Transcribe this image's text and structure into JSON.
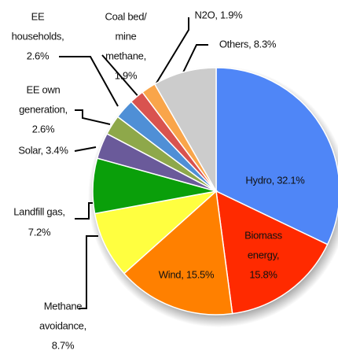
{
  "chart_data": {
    "type": "pie",
    "values": [
      32.1,
      15.8,
      15.5,
      8.7,
      7.2,
      3.4,
      2.6,
      2.6,
      1.9,
      1.9,
      8.3
    ],
    "value_labels": [
      [
        "Hydro, 32.1%"
      ],
      [
        "Biomass",
        "energy,",
        "15.8%"
      ],
      [
        "Wind, 15.5%"
      ],
      [
        "Methane",
        "avoidance,",
        "8.7%"
      ],
      [
        "Landfill gas,",
        "7.2%"
      ],
      [
        "Solar, 3.4%"
      ],
      [
        "EE own",
        "generation,",
        "2.6%"
      ],
      [
        "EE",
        "households,",
        "2.6%"
      ],
      [
        "Coal bed/",
        "mine",
        "methane,",
        "1.9%"
      ],
      [
        "N2O, 1.9%"
      ],
      [
        "Others, 8.3%"
      ]
    ],
    "colors": [
      "#4f86f7",
      "#ff2a00",
      "#ff8000",
      "#ffff40",
      "#0a9f0a",
      "#6a5a9a",
      "#8ea84a",
      "#4f8fd6",
      "#d9534f",
      "#f9a54a",
      "#cccccc"
    ]
  }
}
